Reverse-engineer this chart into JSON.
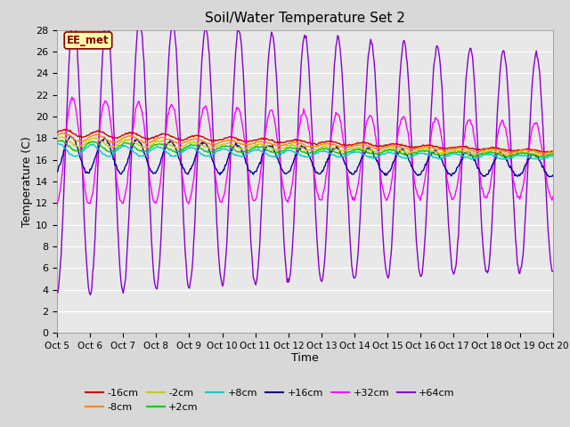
{
  "title": "Soil/Water Temperature Set 2",
  "xlabel": "Time",
  "ylabel": "Temperature (C)",
  "ylim": [
    0,
    28
  ],
  "yticks": [
    0,
    2,
    4,
    6,
    8,
    10,
    12,
    14,
    16,
    18,
    20,
    22,
    24,
    26,
    28
  ],
  "xtick_labels": [
    "Oct 5",
    "Oct 6",
    "Oct 7",
    "Oct 8",
    "Oct 9",
    "Oct 10",
    "Oct 11",
    "Oct 12",
    "Oct 13",
    "Oct 14",
    "Oct 15",
    "Oct 16",
    "Oct 17",
    "Oct 18",
    "Oct 19",
    "Oct 20"
  ],
  "annotation": "EE_met",
  "series_colors": {
    "-16cm": "#cc0000",
    "-8cm": "#ff8800",
    "-2cm": "#cccc00",
    "+2cm": "#00cc00",
    "+8cm": "#00cccc",
    "+16cm": "#000099",
    "+32cm": "#ff00ff",
    "+64cm": "#8800cc"
  },
  "background_color": "#d8d8d8",
  "plot_bg_color": "#e8e8e8",
  "grid_color": "#ffffff",
  "n_points": 600
}
